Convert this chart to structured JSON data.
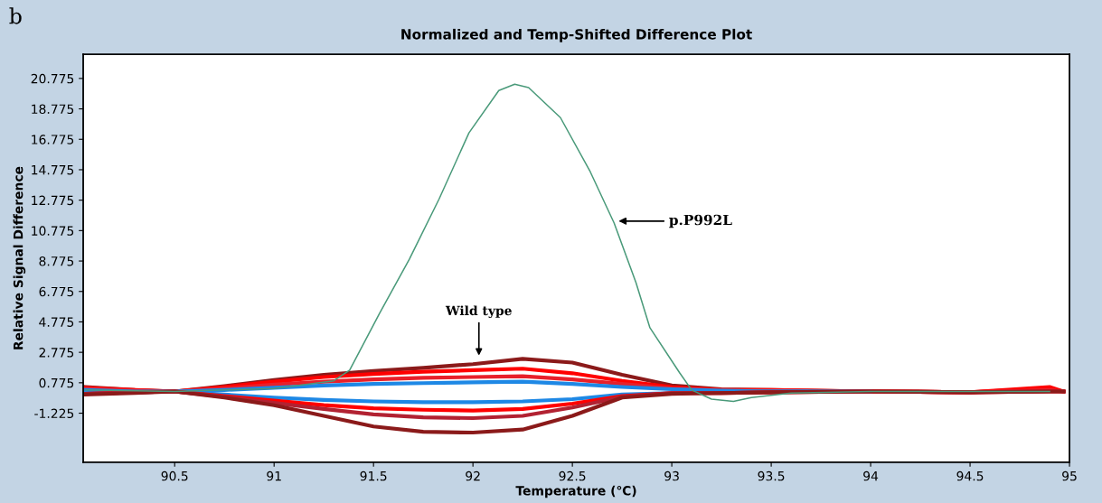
{
  "chart_data": {
    "type": "line",
    "title": "Normalized and Temp-Shifted Difference Plot",
    "xlabel": "Temperature (℃)",
    "ylabel": "Relative Signal Difference",
    "x": [
      90.05,
      90.3,
      90.5,
      90.75,
      91.0,
      91.25,
      91.5,
      91.75,
      92.0,
      92.25,
      92.5,
      92.75,
      93.0,
      93.25,
      93.5,
      94.0,
      94.5,
      94.9,
      94.97
    ],
    "series": [
      {
        "color": "#8b1a1a",
        "values": [
          0.5,
          0.3,
          0.2,
          0.55,
          0.95,
          1.3,
          1.55,
          1.75,
          2.0,
          2.35,
          2.1,
          1.3,
          0.6,
          0.35,
          0.3,
          0.2,
          0.15,
          0.4,
          0.2
        ]
      },
      {
        "color": "#ff0000",
        "values": [
          0.45,
          0.3,
          0.2,
          0.5,
          0.85,
          1.15,
          1.35,
          1.5,
          1.6,
          1.7,
          1.4,
          0.9,
          0.5,
          0.3,
          0.3,
          0.2,
          0.15,
          0.5,
          0.2
        ]
      },
      {
        "color": "#e8202a",
        "values": [
          0.4,
          0.25,
          0.2,
          0.4,
          0.65,
          0.85,
          1.0,
          1.1,
          1.15,
          1.2,
          1.0,
          0.7,
          0.4,
          0.3,
          0.25,
          0.2,
          0.15,
          0.3,
          0.2
        ]
      },
      {
        "color": "#1e88e5",
        "values": [
          0.3,
          0.2,
          0.2,
          0.3,
          0.45,
          0.6,
          0.7,
          0.75,
          0.8,
          0.85,
          0.7,
          0.5,
          0.35,
          0.25,
          0.2,
          0.2,
          null,
          null,
          null
        ]
      },
      {
        "color": "#1e88e5",
        "values": [
          0.1,
          0.15,
          0.2,
          0.0,
          -0.2,
          -0.35,
          -0.45,
          -0.5,
          -0.5,
          -0.45,
          -0.3,
          0.0,
          0.1,
          0.15,
          0.2,
          0.2,
          null,
          null,
          null
        ]
      },
      {
        "color": "#ff0000",
        "values": [
          0.05,
          0.15,
          0.2,
          -0.1,
          -0.4,
          -0.7,
          -0.9,
          -1.0,
          -1.05,
          -0.95,
          -0.6,
          -0.1,
          0.1,
          0.1,
          0.15,
          0.2,
          0.15,
          0.2,
          0.2
        ]
      },
      {
        "color": "#b22232",
        "values": [
          0.05,
          0.15,
          0.2,
          -0.15,
          -0.55,
          -0.95,
          -1.3,
          -1.5,
          -1.55,
          -1.4,
          -0.85,
          -0.15,
          0.1,
          0.1,
          0.15,
          0.2,
          0.15,
          0.2,
          0.2
        ]
      },
      {
        "color": "#8b1a1a",
        "values": [
          0.0,
          0.1,
          0.2,
          -0.2,
          -0.7,
          -1.4,
          -2.1,
          -2.45,
          -2.5,
          -2.3,
          -1.4,
          -0.2,
          0.05,
          0.1,
          0.15,
          0.2,
          0.15,
          0.2,
          0.2
        ]
      },
      {
        "color": "#4a9a7a",
        "x": [
          90.05,
          90.5,
          91.0,
          91.3,
          91.38,
          91.53,
          91.68,
          91.83,
          91.98,
          92.13,
          92.21,
          92.28,
          92.44,
          92.59,
          92.71,
          92.82,
          92.89,
          93.04,
          93.1,
          93.2,
          93.31,
          93.4,
          93.6,
          94.0,
          94.9
        ],
        "values": [
          0.3,
          0.2,
          0.4,
          0.9,
          1.6,
          5.33,
          8.89,
          12.86,
          17.2,
          19.98,
          20.4,
          20.17,
          18.2,
          14.64,
          11.27,
          7.35,
          4.39,
          1.42,
          0.3,
          -0.3,
          -0.45,
          -0.2,
          0.1,
          0.2,
          0.2
        ]
      }
    ],
    "xlim": [
      90.04,
      95.0
    ],
    "xticks": [
      90.5,
      91,
      91.5,
      92,
      92.5,
      93,
      93.5,
      94,
      94.5,
      95
    ],
    "ylim": [
      -4.45,
      22.36
    ],
    "yticks": [
      -1.225,
      0.775,
      2.775,
      4.775,
      6.775,
      8.775,
      10.775,
      12.775,
      14.775,
      16.775,
      18.775,
      20.775
    ],
    "annotations": [
      "b",
      {
        "text": "p.P992L",
        "x": 92.72,
        "y": 11.4
      },
      {
        "text": "Wild type",
        "x": 92.03,
        "y": 2.4
      }
    ],
    "grid": false,
    "legend": false
  }
}
